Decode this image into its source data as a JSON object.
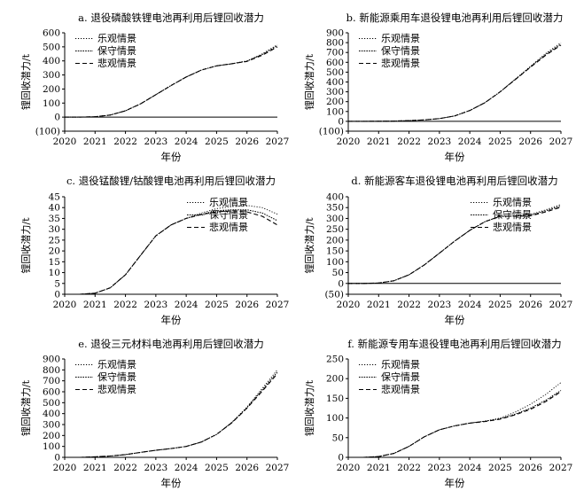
{
  "legend_labels": [
    "乐观情景",
    "保守情景",
    "悲观情景"
  ],
  "chart_data": [
    {
      "type": "line",
      "title": "a. 退役磷酸铁锂电池再利用后锂回收潜力",
      "xlabel": "年份",
      "ylabel": "锂回收潜力/t",
      "xlim": [
        2020,
        2027
      ],
      "ylim": [
        -100,
        600
      ],
      "x_ticks": [
        "2020",
        "2021",
        "2022",
        "2023",
        "2024",
        "2025",
        "2026",
        "2027"
      ],
      "y_ticks": [
        "(100)",
        "0",
        "100",
        "200",
        "300",
        "400",
        "500",
        "600"
      ],
      "y_tick_values": [
        -100,
        0,
        100,
        200,
        300,
        400,
        500,
        600
      ],
      "legend_position": "top-left",
      "x": [
        2020,
        2020.5,
        2021,
        2021.5,
        2022,
        2022.5,
        2023,
        2023.5,
        2024,
        2024.5,
        2025,
        2025.5,
        2026,
        2026.5,
        2027
      ],
      "series": [
        {
          "name": "乐观情景",
          "style": "dotted",
          "values": [
            0,
            0,
            3,
            15,
            45,
            95,
            160,
            225,
            285,
            335,
            365,
            380,
            400,
            450,
            515
          ]
        },
        {
          "name": "保守情景",
          "style": "dotted-dense",
          "values": [
            0,
            0,
            3,
            15,
            45,
            95,
            160,
            225,
            285,
            335,
            365,
            380,
            398,
            445,
            508
          ]
        },
        {
          "name": "悲观情景",
          "style": "dashed",
          "values": [
            0,
            0,
            3,
            15,
            45,
            95,
            160,
            225,
            285,
            335,
            365,
            380,
            396,
            440,
            500
          ]
        }
      ]
    },
    {
      "type": "line",
      "title": "b. 新能源乘用车退役锂电池再利用后锂回收潜力",
      "xlabel": "年份",
      "ylabel": "锂回收潜力/t",
      "xlim": [
        2020,
        2027
      ],
      "ylim": [
        -100,
        900
      ],
      "x_ticks": [
        "2020",
        "2021",
        "2022",
        "2023",
        "2024",
        "2025",
        "2026",
        "2027"
      ],
      "y_ticks": [
        "(100)",
        "0",
        "100",
        "200",
        "300",
        "400",
        "500",
        "600",
        "700",
        "800",
        "900"
      ],
      "y_tick_values": [
        -100,
        0,
        100,
        200,
        300,
        400,
        500,
        600,
        700,
        800,
        900
      ],
      "legend_position": "top-left",
      "x": [
        2020,
        2020.5,
        2021,
        2021.5,
        2022,
        2022.5,
        2023,
        2023.5,
        2024,
        2024.5,
        2025,
        2025.5,
        2026,
        2026.5,
        2027
      ],
      "series": [
        {
          "name": "乐观情景",
          "style": "dotted",
          "values": [
            0,
            0,
            1,
            3,
            7,
            14,
            28,
            55,
            110,
            190,
            300,
            430,
            560,
            690,
            800
          ]
        },
        {
          "name": "保守情景",
          "style": "dotted-dense",
          "values": [
            0,
            0,
            1,
            3,
            7,
            14,
            28,
            55,
            110,
            190,
            300,
            428,
            555,
            680,
            785
          ]
        },
        {
          "name": "悲观情景",
          "style": "dashed",
          "values": [
            0,
            0,
            1,
            3,
            7,
            14,
            28,
            55,
            110,
            190,
            300,
            425,
            550,
            672,
            775
          ]
        }
      ]
    },
    {
      "type": "line",
      "title": "c. 退役锰酸锂/钴酸锂电池再利用后锂回收潜力",
      "xlabel": "年份",
      "ylabel": "锂回收潜力/t",
      "xlim": [
        2020,
        2027
      ],
      "ylim": [
        0,
        45
      ],
      "x_ticks": [
        "2020",
        "2021",
        "2022",
        "2023",
        "2024",
        "2025",
        "2026",
        "2027"
      ],
      "y_ticks": [
        "0",
        "5",
        "10",
        "15",
        "20",
        "25",
        "30",
        "35",
        "40",
        "45"
      ],
      "y_tick_values": [
        0,
        5,
        10,
        15,
        20,
        25,
        30,
        35,
        40,
        45
      ],
      "legend_position": "top-right",
      "x": [
        2020,
        2020.5,
        2021,
        2021.5,
        2022,
        2022.5,
        2023,
        2023.5,
        2024,
        2024.5,
        2025,
        2025.5,
        2026,
        2026.5,
        2027
      ],
      "series": [
        {
          "name": "乐观情景",
          "style": "dotted",
          "values": [
            0,
            0,
            0.5,
            3,
            9,
            18,
            27,
            32,
            35,
            37.5,
            39.5,
            40.5,
            41,
            40,
            37
          ]
        },
        {
          "name": "保守情景",
          "style": "dotted-dense",
          "values": [
            0,
            0,
            0.5,
            3,
            9,
            18,
            27,
            32,
            35,
            37,
            38.5,
            39,
            39,
            37.5,
            34
          ]
        },
        {
          "name": "悲观情景",
          "style": "dashed",
          "values": [
            0,
            0,
            0.5,
            3,
            9,
            18,
            27,
            32,
            35,
            36.8,
            38,
            38.5,
            38,
            36,
            32
          ]
        }
      ]
    },
    {
      "type": "line",
      "title": "d. 新能源客车退役锂电池再利用后锂回收潜力",
      "xlabel": "年份",
      "ylabel": "锂回收潜力/t",
      "xlim": [
        2020,
        2027
      ],
      "ylim": [
        -50,
        400
      ],
      "x_ticks": [
        "2020",
        "2021",
        "2022",
        "2023",
        "2024",
        "2025",
        "2026",
        "2027"
      ],
      "y_ticks": [
        "(50)",
        "0",
        "50",
        "100",
        "150",
        "200",
        "250",
        "300",
        "350",
        "400"
      ],
      "y_tick_values": [
        -50,
        0,
        50,
        100,
        150,
        200,
        250,
        300,
        350,
        400
      ],
      "legend_position": "top-right",
      "x": [
        2020,
        2020.5,
        2021,
        2021.5,
        2022,
        2022.5,
        2023,
        2023.5,
        2024,
        2024.5,
        2025,
        2025.5,
        2026,
        2026.5,
        2027
      ],
      "series": [
        {
          "name": "乐观情景",
          "style": "dotted",
          "values": [
            0,
            0,
            2,
            12,
            40,
            85,
            140,
            195,
            245,
            285,
            310,
            312,
            318,
            340,
            365
          ]
        },
        {
          "name": "保守情景",
          "style": "dotted-dense",
          "values": [
            0,
            0,
            2,
            12,
            40,
            85,
            140,
            195,
            245,
            285,
            310,
            311,
            315,
            335,
            358
          ]
        },
        {
          "name": "悲观情景",
          "style": "dashed",
          "values": [
            0,
            0,
            2,
            12,
            40,
            85,
            140,
            195,
            245,
            285,
            310,
            310,
            312,
            330,
            352
          ]
        }
      ]
    },
    {
      "type": "line",
      "title": "e. 退役三元材料电池再利用后锂回收潜力",
      "xlabel": "年份",
      "ylabel": "锂回收潜力/t",
      "xlim": [
        2020,
        2027
      ],
      "ylim": [
        0,
        900
      ],
      "x_ticks": [
        "2020",
        "2021",
        "2022",
        "2023",
        "2024",
        "2025",
        "2026",
        "2027"
      ],
      "y_ticks": [
        "0",
        "100",
        "200",
        "300",
        "400",
        "500",
        "600",
        "700",
        "800",
        "900"
      ],
      "y_tick_values": [
        0,
        100,
        200,
        300,
        400,
        500,
        600,
        700,
        800,
        900
      ],
      "legend_position": "top-left",
      "x": [
        2020,
        2020.5,
        2021,
        2021.5,
        2022,
        2022.5,
        2023,
        2023.5,
        2024,
        2024.5,
        2025,
        2025.5,
        2026,
        2026.5,
        2027
      ],
      "series": [
        {
          "name": "乐观情景",
          "style": "dotted",
          "values": [
            0,
            0,
            5,
            12,
            25,
            45,
            65,
            80,
            100,
            140,
            210,
            320,
            460,
            630,
            800
          ]
        },
        {
          "name": "保守情景",
          "style": "dotted-dense",
          "values": [
            0,
            0,
            5,
            12,
            25,
            45,
            65,
            80,
            100,
            140,
            210,
            318,
            455,
            615,
            780
          ]
        },
        {
          "name": "悲观情景",
          "style": "dashed",
          "values": [
            0,
            0,
            5,
            12,
            25,
            45,
            65,
            80,
            100,
            140,
            210,
            315,
            450,
            605,
            765
          ]
        }
      ]
    },
    {
      "type": "line",
      "title": "f. 新能源专用车退役锂电池再利用后锂回收潜力",
      "xlabel": "年份",
      "ylabel": "锂回收潜力/t",
      "xlim": [
        2020,
        2027
      ],
      "ylim": [
        0,
        250
      ],
      "x_ticks": [
        "2020",
        "2021",
        "2022",
        "2023",
        "2024",
        "2025",
        "2026",
        "2027"
      ],
      "y_ticks": [
        "0",
        "50",
        "100",
        "150",
        "200",
        "250"
      ],
      "y_tick_values": [
        0,
        50,
        100,
        150,
        200,
        250
      ],
      "legend_position": "top-left",
      "x": [
        2020,
        2020.5,
        2021,
        2021.5,
        2022,
        2022.5,
        2023,
        2023.5,
        2024,
        2024.5,
        2025,
        2025.5,
        2026,
        2026.5,
        2027
      ],
      "series": [
        {
          "name": "乐观情景",
          "style": "dotted",
          "values": [
            0,
            0,
            2,
            10,
            28,
            52,
            70,
            80,
            87,
            92,
            100,
            115,
            135,
            160,
            190
          ]
        },
        {
          "name": "保守情景",
          "style": "dotted-dense",
          "values": [
            0,
            0,
            2,
            10,
            28,
            52,
            70,
            80,
            87,
            92,
            98,
            110,
            125,
            145,
            170
          ]
        },
        {
          "name": "悲观情景",
          "style": "dashed",
          "values": [
            0,
            0,
            2,
            10,
            28,
            52,
            70,
            80,
            87,
            91,
            97,
            108,
            122,
            142,
            167
          ]
        }
      ]
    }
  ]
}
